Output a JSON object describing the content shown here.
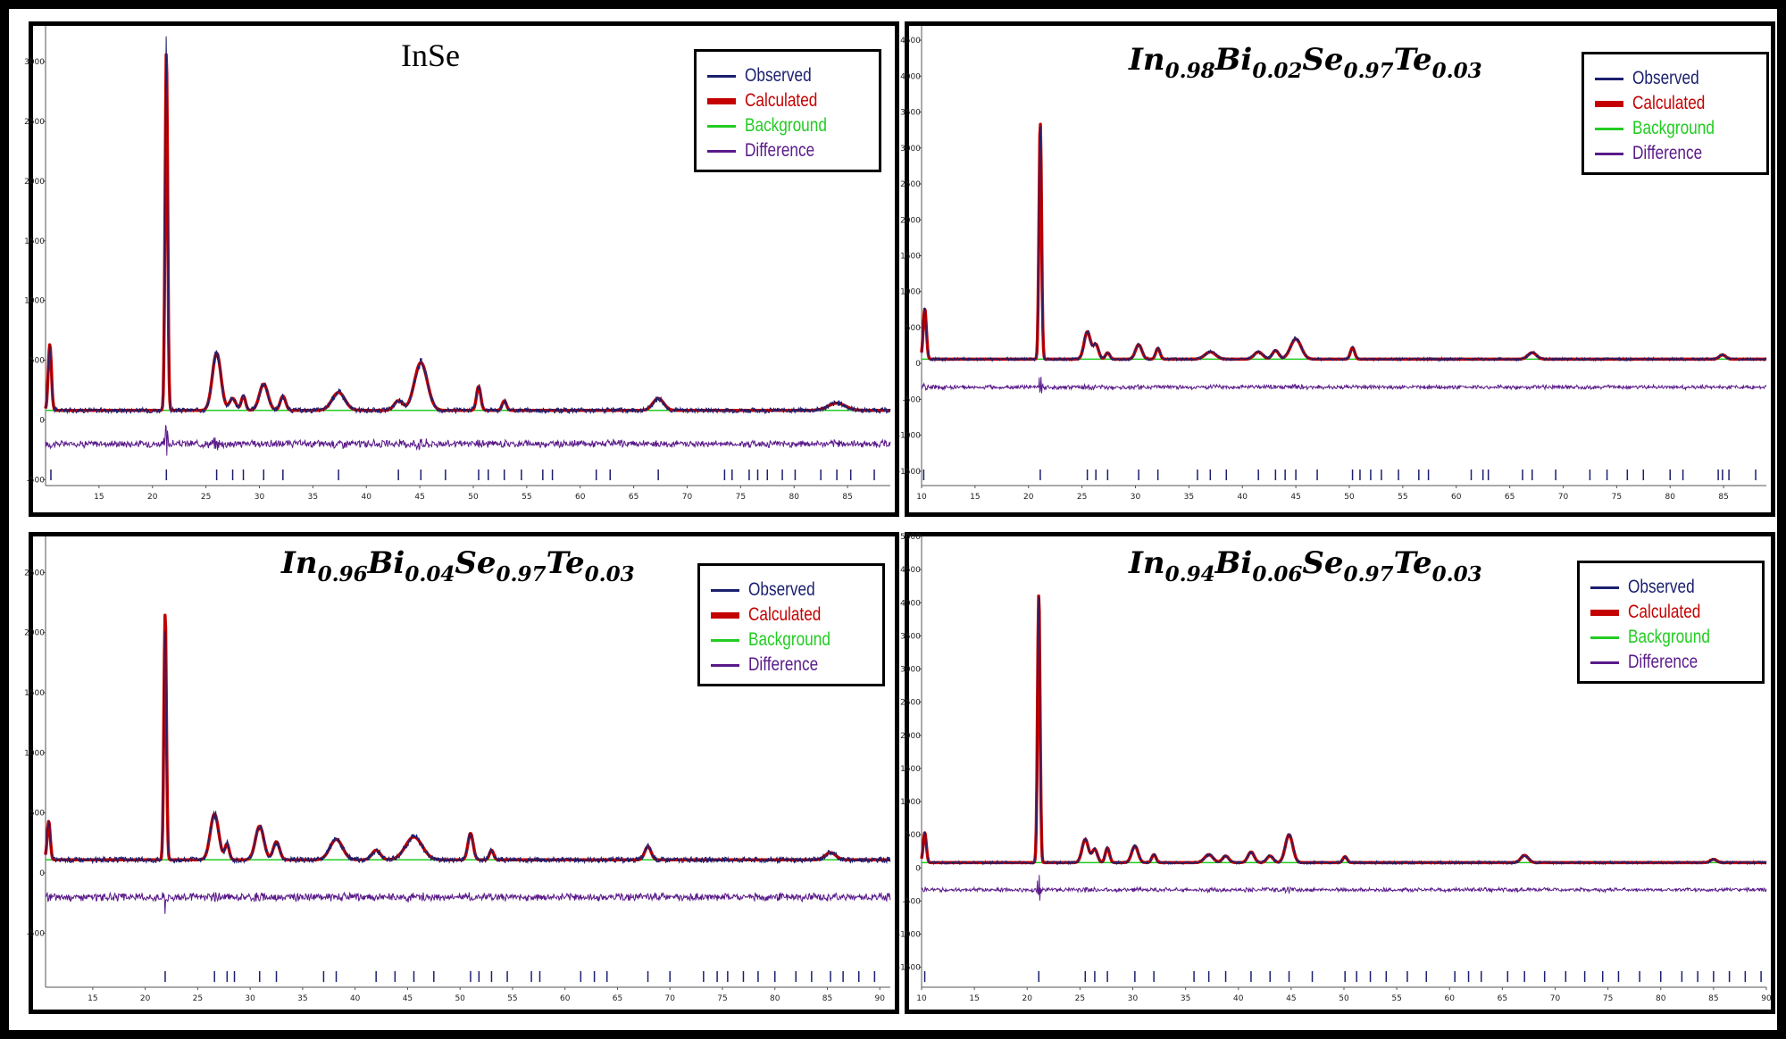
{
  "legend": {
    "observed": "Observed",
    "calculated": "Calculated",
    "background": "Background",
    "difference": "Difference"
  },
  "colors": {
    "observed": "#1a1f6e",
    "calculated": "#c40000",
    "background": "#22cc22",
    "difference": "#5a1a8a",
    "hkl_ticks": "#1a1f6e"
  },
  "panels": [
    {
      "title_plain": "InSe",
      "formula": null
    },
    {
      "title_plain": null,
      "formula": {
        "a": "In",
        "a_sub": "0.98",
        "b": "Bi",
        "b_sub": "0.02",
        "c": "Se",
        "c_sub": "0.97",
        "d": "Te",
        "d_sub": "0.03"
      }
    },
    {
      "title_plain": null,
      "formula": {
        "a": "In",
        "a_sub": "0.96",
        "b": "Bi",
        "b_sub": "0.04",
        "c": "Se",
        "c_sub": "0.97",
        "d": "Te",
        "d_sub": "0.03"
      }
    },
    {
      "title_plain": null,
      "formula": {
        "a": "In",
        "a_sub": "0.94",
        "b": "Bi",
        "b_sub": "0.06",
        "c": "Se",
        "c_sub": "0.97",
        "d": "Te",
        "d_sub": "0.03"
      }
    }
  ],
  "chart_data": [
    {
      "type": "line",
      "title": "InSe",
      "xlim": [
        10,
        89
      ],
      "ylim": [
        -550,
        3300
      ],
      "xticks": [
        15,
        20,
        25,
        30,
        35,
        40,
        45,
        50,
        55,
        60,
        65,
        70,
        75,
        80,
        85
      ],
      "yticks": [
        -500,
        0,
        500,
        1000,
        1500,
        2000,
        2500,
        3000
      ],
      "background_level": 80,
      "difference_offset": -200,
      "peaks": [
        [
          10.4,
          550,
          0.15
        ],
        [
          21.3,
          3000,
          0.12
        ],
        [
          26.0,
          480,
          0.4
        ],
        [
          27.5,
          100,
          0.3
        ],
        [
          28.5,
          120,
          0.2
        ],
        [
          30.4,
          220,
          0.4
        ],
        [
          32.2,
          120,
          0.25
        ],
        [
          37.4,
          150,
          0.6
        ],
        [
          43.0,
          80,
          0.4
        ],
        [
          45.1,
          400,
          0.6
        ],
        [
          50.5,
          200,
          0.2
        ],
        [
          52.9,
          80,
          0.2
        ],
        [
          67.3,
          100,
          0.5
        ],
        [
          84.0,
          60,
          0.8
        ]
      ],
      "hkl_ticks": [
        10.5,
        21.3,
        26.0,
        27.5,
        28.5,
        30.4,
        32.2,
        37.4,
        43.0,
        45.1,
        47.4,
        50.5,
        51.4,
        52.9,
        54.5,
        56.5,
        57.4,
        61.5,
        62.8,
        67.3,
        73.5,
        74.2,
        75.8,
        76.6,
        77.5,
        78.9,
        80.1,
        82.5,
        84.0,
        85.3,
        87.5
      ]
    },
    {
      "type": "line",
      "title": "In0.98Bi0.02Se0.97Te0.03",
      "xlim": [
        10,
        89
      ],
      "ylim": [
        -1700,
        4700
      ],
      "xticks": [
        10,
        15,
        20,
        25,
        30,
        35,
        40,
        45,
        50,
        55,
        60,
        65,
        70,
        75,
        80,
        85
      ],
      "yticks": [
        -1500,
        -1000,
        -500,
        0,
        500,
        1000,
        1500,
        2000,
        2500,
        3000,
        3500,
        4000,
        4500
      ],
      "background_level": 60,
      "difference_offset": -330,
      "peaks": [
        [
          10.3,
          700,
          0.15
        ],
        [
          21.1,
          3300,
          0.12
        ],
        [
          25.5,
          380,
          0.3
        ],
        [
          26.3,
          200,
          0.25
        ],
        [
          27.4,
          90,
          0.2
        ],
        [
          30.3,
          200,
          0.3
        ],
        [
          32.1,
          150,
          0.2
        ],
        [
          37.0,
          100,
          0.5
        ],
        [
          41.5,
          100,
          0.4
        ],
        [
          43.1,
          120,
          0.3
        ],
        [
          45.0,
          280,
          0.5
        ],
        [
          50.3,
          160,
          0.2
        ],
        [
          67.1,
          90,
          0.4
        ],
        [
          84.9,
          60,
          0.3
        ]
      ],
      "hkl_ticks": [
        10.2,
        21.1,
        25.5,
        26.3,
        27.4,
        30.3,
        32.1,
        35.8,
        37.0,
        38.5,
        41.5,
        43.1,
        44.0,
        45.0,
        47.0,
        50.3,
        51.0,
        52.0,
        53.0,
        54.6,
        56.5,
        57.4,
        61.4,
        62.5,
        63.0,
        66.2,
        67.1,
        69.3,
        72.5,
        74.1,
        76.0,
        77.5,
        80.0,
        81.2,
        84.5,
        84.9,
        85.5,
        88.0
      ]
    },
    {
      "type": "line",
      "title": "In0.96Bi0.04Se0.97Te0.03",
      "xlim": [
        10.5,
        91
      ],
      "ylim": [
        -950,
        2800
      ],
      "xticks": [
        15,
        20,
        25,
        30,
        35,
        40,
        45,
        50,
        55,
        60,
        65,
        70,
        75,
        80,
        85,
        90
      ],
      "yticks": [
        -500,
        0,
        500,
        1000,
        1500,
        2000,
        2500
      ],
      "background_level": 110,
      "difference_offset": -200,
      "peaks": [
        [
          10.8,
          320,
          0.15
        ],
        [
          21.9,
          2050,
          0.12
        ],
        [
          26.6,
          380,
          0.4
        ],
        [
          27.8,
          130,
          0.2
        ],
        [
          30.9,
          280,
          0.4
        ],
        [
          32.5,
          150,
          0.3
        ],
        [
          38.2,
          170,
          0.6
        ],
        [
          42.0,
          80,
          0.4
        ],
        [
          45.6,
          190,
          0.8
        ],
        [
          51.0,
          220,
          0.25
        ],
        [
          53.0,
          80,
          0.2
        ],
        [
          67.9,
          110,
          0.3
        ],
        [
          85.3,
          60,
          0.5
        ]
      ],
      "hkl_ticks": [
        21.9,
        26.6,
        27.8,
        28.5,
        30.9,
        32.5,
        37.0,
        38.2,
        42.0,
        43.8,
        45.6,
        47.5,
        51.0,
        51.8,
        53.0,
        54.5,
        56.8,
        57.6,
        61.5,
        62.8,
        64.0,
        67.9,
        70.0,
        73.2,
        74.5,
        75.5,
        77.0,
        78.4,
        80.0,
        82.0,
        83.5,
        85.3,
        86.5,
        88.0,
        89.5
      ]
    },
    {
      "type": "line",
      "title": "In0.94Bi0.06Se0.97Te0.03",
      "xlim": [
        10,
        90
      ],
      "ylim": [
        -1800,
        5000
      ],
      "xticks": [
        10,
        15,
        20,
        25,
        30,
        35,
        40,
        45,
        50,
        55,
        60,
        65,
        70,
        75,
        80,
        85,
        90
      ],
      "yticks": [
        -1500,
        -1000,
        -500,
        0,
        500,
        1000,
        1500,
        2000,
        2500,
        3000,
        3500,
        4000,
        4500,
        5000
      ],
      "background_level": 80,
      "difference_offset": -330,
      "peaks": [
        [
          10.3,
          450,
          0.15
        ],
        [
          21.1,
          4050,
          0.12
        ],
        [
          25.5,
          350,
          0.3
        ],
        [
          26.4,
          200,
          0.25
        ],
        [
          27.6,
          220,
          0.2
        ],
        [
          30.2,
          250,
          0.3
        ],
        [
          32.0,
          120,
          0.2
        ],
        [
          37.2,
          120,
          0.4
        ],
        [
          38.8,
          100,
          0.3
        ],
        [
          41.2,
          160,
          0.3
        ],
        [
          43.0,
          100,
          0.3
        ],
        [
          44.8,
          420,
          0.35
        ],
        [
          50.1,
          90,
          0.2
        ],
        [
          67.1,
          110,
          0.35
        ],
        [
          85.0,
          50,
          0.3
        ]
      ],
      "hkl_ticks": [
        10.3,
        21.1,
        25.5,
        26.4,
        27.6,
        30.2,
        32.0,
        35.8,
        37.2,
        38.8,
        41.2,
        43.0,
        44.8,
        47.0,
        50.1,
        51.2,
        52.5,
        54.0,
        56.0,
        57.8,
        60.5,
        61.8,
        63.0,
        65.5,
        67.1,
        69.0,
        71.0,
        72.8,
        74.5,
        76.0,
        78.0,
        80.0,
        82.0,
        83.5,
        85.0,
        86.5,
        88.0,
        89.5
      ]
    }
  ]
}
